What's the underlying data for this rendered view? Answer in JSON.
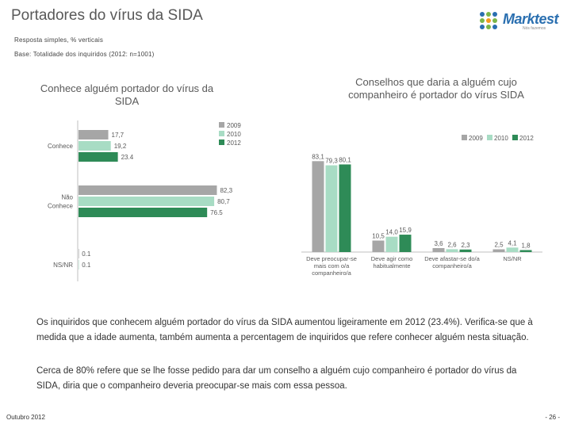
{
  "page": {
    "title": "Portadores do vírus da SIDA",
    "subtitle1": "Resposta simples, % verticais",
    "subtitle2": "Base: Totalidade dos inquiridos (2012: n=1001)",
    "logo_text": "Marktest",
    "logo_tag": "Nós fazemos",
    "paragraph1": "Os inquiridos que conhecem alguém portador do vírus da SIDA aumentou ligeiramente em 2012 (23.4%). Verifica-se que à medida que a idade aumenta, também aumenta a percentagem de inquiridos que refere conhecer alguém nesta situação.",
    "paragraph2": "Cerca de 80% refere que se lhe fosse pedido para dar um conselho a alguém cujo companheiro é portador do vírus da SIDA, diria que o companheiro deveria preocupar-se mais com essa pessoa.",
    "footer_left": "Outubro 2012",
    "footer_right": "- 26 -"
  },
  "colors": {
    "c2009": "#a6a6a6",
    "c2010": "#a8dcc4",
    "c2012": "#2e8b57",
    "logo_dot1": "#2a6fb0",
    "logo_dot2": "#7ab648",
    "logo_dot3": "#f39a1e"
  },
  "chart_data": [
    {
      "type": "bar",
      "orientation": "horizontal",
      "title": "Conhece alguém portador do vírus da SIDA",
      "categories": [
        "Conhece",
        "Não Conhece",
        "NS/NR"
      ],
      "series": [
        {
          "name": "2009",
          "values": [
            17.7,
            82.3,
            0.1
          ],
          "labels": [
            "17,7",
            "82,3",
            "0.1"
          ]
        },
        {
          "name": "2010",
          "values": [
            19.2,
            80.7,
            0.1
          ],
          "labels": [
            "19,2",
            "80,7",
            "0.1"
          ]
        },
        {
          "name": "2012",
          "values": [
            23.4,
            76.5,
            null
          ],
          "labels": [
            "23.4",
            "76.5",
            ""
          ]
        }
      ],
      "legend": "top-right",
      "xlim": [
        0,
        100
      ]
    },
    {
      "type": "bar",
      "orientation": "vertical",
      "title": "Conselhos que daria a alguém cujo companheiro é portador do vírus SIDA",
      "categories": [
        "Deve preocupar-se mais com o/a companheiro/a",
        "Deve agir como habitualmente",
        "Deve afastar-se do/a companheiro/a",
        "NS/NR"
      ],
      "series": [
        {
          "name": "2009",
          "values": [
            83.1,
            10.5,
            3.6,
            2.5
          ],
          "labels": [
            "83,1",
            "10,5",
            "3,6",
            "2,5"
          ]
        },
        {
          "name": "2010",
          "values": [
            79.3,
            14.0,
            2.6,
            4.1
          ],
          "labels": [
            "79,3",
            "14,0",
            "2,6",
            "4,1"
          ]
        },
        {
          "name": "2012",
          "values": [
            80.1,
            15.9,
            2.3,
            1.8
          ],
          "labels": [
            "80,1",
            "15,9",
            "2,3",
            "1,8"
          ]
        }
      ],
      "legend": "top-right",
      "ylim": [
        0,
        100
      ]
    }
  ]
}
